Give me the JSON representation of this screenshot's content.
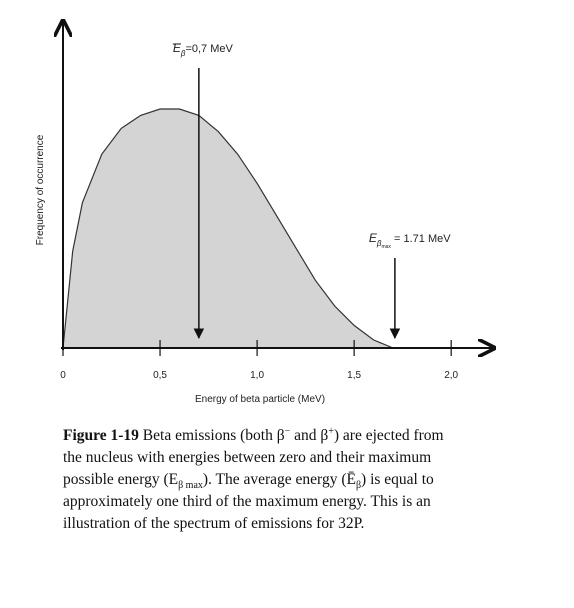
{
  "chart_data": {
    "type": "area",
    "x_label": "Energy of beta particle (MeV)",
    "y_label": "Frequency of occurrence",
    "x": [
      0,
      0.05,
      0.1,
      0.2,
      0.3,
      0.4,
      0.5,
      0.6,
      0.7,
      0.8,
      0.9,
      1.0,
      1.1,
      1.2,
      1.3,
      1.4,
      1.5,
      1.6,
      1.7
    ],
    "values": [
      0,
      0.3,
      0.45,
      0.6,
      0.68,
      0.72,
      0.74,
      0.74,
      0.72,
      0.67,
      0.6,
      0.51,
      0.41,
      0.31,
      0.21,
      0.13,
      0.07,
      0.025,
      0
    ],
    "color": "#d4d4d4",
    "xlim": [
      0,
      2.2
    ],
    "ylim": [
      0,
      1
    ],
    "xticks": [
      0,
      {
        "value": 0.5,
        "label": "0,5"
      },
      {
        "value": 1,
        "label": "1,0"
      },
      {
        "value": 1.5,
        "label": "1,5"
      },
      {
        "value": 2,
        "label": "2,0"
      }
    ],
    "annotations": [
      {
        "symbol": "E",
        "subscript": "β",
        "text": "=0,7 MeV",
        "x": 0.7
      },
      {
        "symbol": "E",
        "subscript": "β",
        "subsubscript": "max",
        "text": " = 1.71 MeV",
        "x": 1.71
      }
    ]
  },
  "caption": {
    "label": "Figure 1-19",
    "parts": [
      " Beta emissions (both β",
      "−",
      " and β",
      "+",
      ") are ejected from the nucleus with energies between zero and their maximum possible energy (E",
      "β max",
      "). The average energy (Ē",
      "β",
      ") is equal to approximately one third of the maximum energy. This is an illustration of the spectrum of emissions for 32P."
    ]
  }
}
